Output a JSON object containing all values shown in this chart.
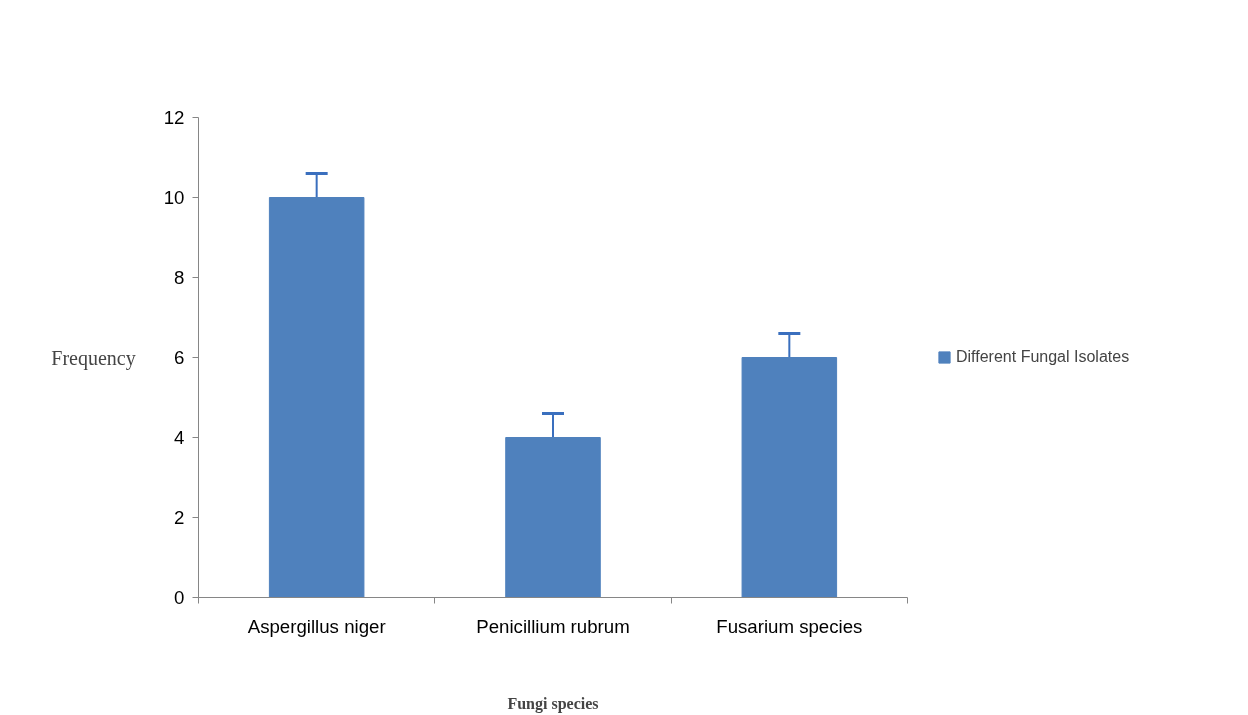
{
  "chart_data": {
    "type": "bar",
    "xlabel": "Fungi species",
    "ylabel": "Frequency",
    "categories": [
      "Aspergillus niger",
      "Penicillium rubrum",
      "Fusarium species"
    ],
    "series": [
      {
        "name": "Different Fungal Isolates",
        "color": "#4f81bd",
        "values": [
          10,
          4,
          6
        ],
        "errors": [
          [
            10,
            10.6
          ],
          [
            4,
            4.6
          ],
          [
            6,
            6.6
          ]
        ]
      }
    ],
    "ylim": [
      0,
      12
    ],
    "yticks": [
      0,
      2,
      4,
      6,
      8,
      10,
      12
    ],
    "grid": false,
    "legend": "right"
  }
}
